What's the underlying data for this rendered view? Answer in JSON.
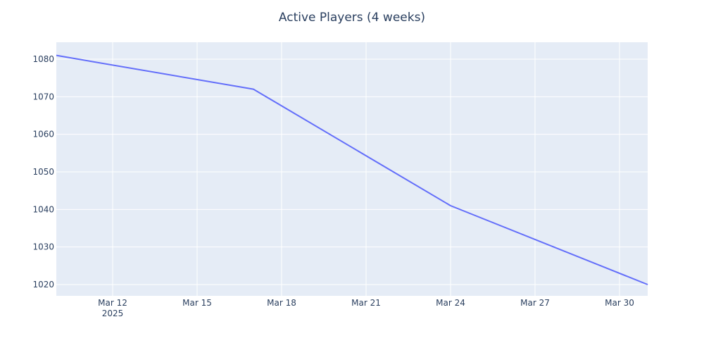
{
  "chart_data": {
    "type": "line",
    "title": "Active Players (4 weeks)",
    "xlabel": "",
    "ylabel": "",
    "x": [
      "2025-03-10",
      "2025-03-17",
      "2025-03-24",
      "2025-03-31"
    ],
    "series": [
      {
        "values": [
          1081,
          1072,
          1041,
          1020
        ]
      }
    ],
    "xlim": [
      "2025-03-10",
      "2025-03-31"
    ],
    "ylim": [
      1017,
      1084.5
    ],
    "x_ticks": [
      {
        "date": "2025-03-12",
        "label": "Mar 12",
        "sublabel": "2025"
      },
      {
        "date": "2025-03-15",
        "label": "Mar 15"
      },
      {
        "date": "2025-03-18",
        "label": "Mar 18"
      },
      {
        "date": "2025-03-21",
        "label": "Mar 21"
      },
      {
        "date": "2025-03-24",
        "label": "Mar 24"
      },
      {
        "date": "2025-03-27",
        "label": "Mar 27"
      },
      {
        "date": "2025-03-30",
        "label": "Mar 30"
      }
    ],
    "y_ticks": [
      1020,
      1030,
      1040,
      1050,
      1060,
      1070,
      1080
    ],
    "grid": true,
    "legend": "none",
    "colors": {
      "line": "#636efa",
      "plot_bg": "#e5ecf6",
      "grid": "#ffffff",
      "text": "#2a3f5f"
    }
  }
}
